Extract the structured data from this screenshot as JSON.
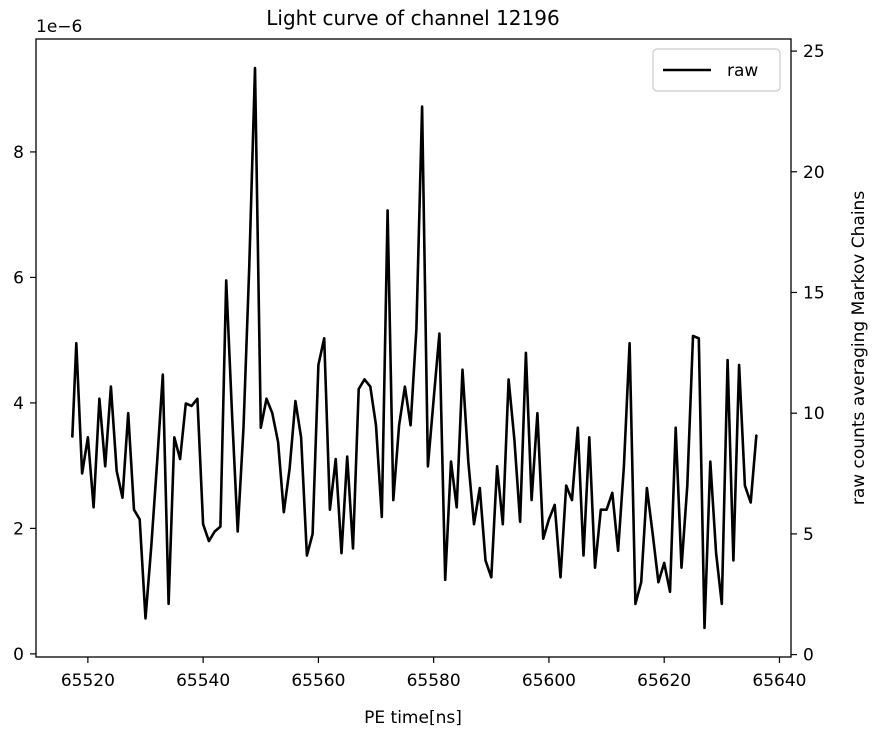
{
  "chart_data": {
    "type": "line",
    "title": "Light curve of channel 12196",
    "xlabel": "PE time[ns]",
    "ylabel_left": "",
    "ylabel_right": "raw counts averaging Markov Chains",
    "left_axis_offset_text": "1e−6",
    "xlim": [
      65511.0,
      65642.0
    ],
    "ylim_left": [
      -0.05,
      9.8
    ],
    "ylim_right": [
      -0.1,
      25.5
    ],
    "xticks": [
      65520,
      65540,
      65560,
      65580,
      65600,
      65620,
      65640
    ],
    "xtick_labels": [
      "65520",
      "65540",
      "65560",
      "65580",
      "65600",
      "65620",
      "65640"
    ],
    "yticks_left": [
      0,
      2,
      4,
      6,
      8
    ],
    "ytick_labels_left": [
      "0",
      "2",
      "4",
      "6",
      "8"
    ],
    "yticks_right": [
      0,
      5,
      10,
      15,
      20,
      25
    ],
    "ytick_labels_right": [
      "0",
      "5",
      "10",
      "15",
      "20",
      "25"
    ],
    "grid": false,
    "legend": "top-right",
    "series": [
      {
        "name": "raw",
        "axis": "right",
        "color": "#000000",
        "x": [
          65517.3,
          65518.0,
          65519.0,
          65520.0,
          65521.0,
          65522.0,
          65523.0,
          65524.0,
          65525.0,
          65526.0,
          65527.0,
          65528.0,
          65529.0,
          65530.0,
          65531.0,
          65532.0,
          65533.0,
          65534.0,
          65535.0,
          65536.0,
          65537.0,
          65538.0,
          65539.0,
          65540.0,
          65541.0,
          65542.0,
          65543.0,
          65544.0,
          65545.0,
          65546.0,
          65547.0,
          65548.0,
          65549.0,
          65550.0,
          65551.0,
          65552.0,
          65553.0,
          65554.0,
          65555.0,
          65556.0,
          65557.0,
          65558.0,
          65559.0,
          65560.0,
          65561.0,
          65562.0,
          65563.0,
          65564.0,
          65565.0,
          65566.0,
          65567.0,
          65568.0,
          65569.0,
          65570.0,
          65571.0,
          65572.0,
          65573.0,
          65574.0,
          65575.0,
          65576.0,
          65577.0,
          65578.0,
          65579.0,
          65580.0,
          65581.0,
          65582.0,
          65583.0,
          65584.0,
          65585.0,
          65586.0,
          65587.0,
          65588.0,
          65589.0,
          65590.0,
          65591.0,
          65592.0,
          65593.0,
          65594.0,
          65595.0,
          65596.0,
          65597.0,
          65598.0,
          65599.0,
          65600.0,
          65601.0,
          65602.0,
          65603.0,
          65604.0,
          65605.0,
          65606.0,
          65607.0,
          65608.0,
          65609.0,
          65610.0,
          65611.0,
          65612.0,
          65613.0,
          65614.0,
          65615.0,
          65616.0,
          65617.0,
          65618.0,
          65619.0,
          65620.0,
          65621.0,
          65622.0,
          65623.0,
          65624.0,
          65625.0,
          65626.0,
          65627.0,
          65628.0,
          65629.0,
          65630.0,
          65631.0,
          65632.0,
          65633.0,
          65634.0,
          65635.0,
          65636.0
        ],
        "values": [
          9.0,
          12.9,
          7.5,
          9.0,
          6.1,
          10.6,
          7.8,
          11.1,
          7.6,
          6.5,
          10.0,
          6.0,
          5.6,
          1.5,
          4.5,
          7.9,
          11.6,
          2.1,
          9.0,
          8.1,
          10.4,
          10.3,
          10.6,
          5.4,
          4.7,
          5.1,
          5.3,
          15.5,
          10.0,
          5.1,
          9.4,
          16.0,
          24.3,
          9.4,
          10.6,
          10.0,
          8.8,
          5.9,
          7.7,
          10.5,
          9.0,
          4.1,
          5.0,
          12.0,
          13.1,
          6.0,
          8.1,
          4.2,
          8.2,
          4.4,
          11.0,
          11.4,
          11.1,
          9.5,
          5.7,
          18.4,
          6.4,
          9.5,
          11.1,
          9.5,
          13.5,
          22.7,
          7.8,
          10.6,
          13.3,
          3.1,
          8.0,
          6.1,
          11.8,
          8.0,
          5.4,
          6.9,
          3.9,
          3.2,
          7.8,
          5.4,
          11.4,
          8.9,
          5.5,
          12.5,
          6.4,
          10.0,
          4.8,
          5.6,
          6.2,
          3.2,
          7.0,
          6.4,
          9.4,
          4.1,
          9.0,
          3.6,
          6.0,
          6.0,
          6.7,
          4.3,
          7.8,
          12.9,
          2.1,
          3.0,
          6.9,
          5.0,
          3.0,
          3.8,
          2.6,
          9.4,
          3.6,
          7.0,
          13.2,
          13.1,
          1.1,
          8.0,
          4.2,
          2.1,
          12.2,
          3.9,
          12.0,
          7.0,
          6.3,
          9.1
        ]
      }
    ]
  }
}
